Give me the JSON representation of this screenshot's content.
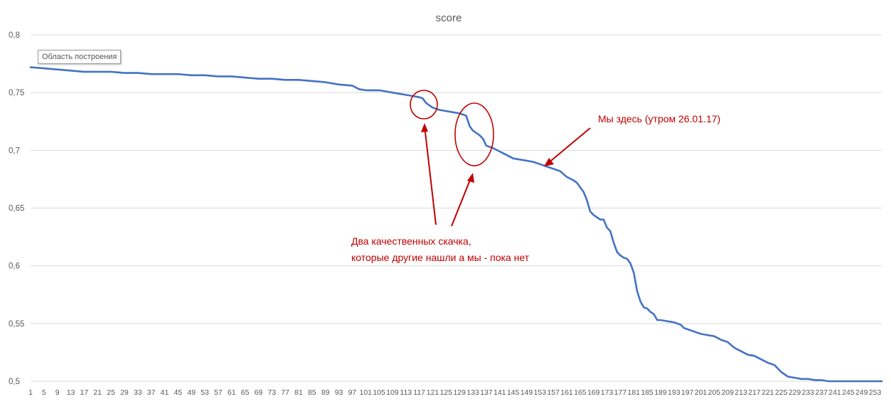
{
  "tooltip": "Область построения",
  "annotations": {
    "two_jumps_line1": "Два качественных скачка,",
    "two_jumps_line2": "которые другие нашли а мы - пока нет",
    "we_are_here": "Мы здесь (утром 26.01.17)"
  },
  "colors": {
    "line": "#4472c4",
    "annotation": "#c00000",
    "grid": "#d9d9d9",
    "text": "#595959"
  },
  "chart_data": {
    "type": "line",
    "title": "score",
    "xlabel": "",
    "ylabel": "",
    "xlim": [
      1,
      255
    ],
    "ylim": [
      0.5,
      0.8
    ],
    "yticks": [
      "0,5",
      "0,55",
      "0,6",
      "0,65",
      "0,7",
      "0,75",
      "0,8"
    ],
    "ytick_values": [
      0.5,
      0.55,
      0.6,
      0.65,
      0.7,
      0.75,
      0.8
    ],
    "xticks": [
      1,
      5,
      9,
      13,
      17,
      21,
      25,
      29,
      33,
      37,
      41,
      45,
      49,
      53,
      57,
      61,
      65,
      69,
      73,
      77,
      81,
      85,
      89,
      93,
      97,
      101,
      105,
      109,
      113,
      117,
      121,
      125,
      129,
      133,
      137,
      141,
      145,
      149,
      153,
      157,
      161,
      165,
      169,
      173,
      177,
      181,
      185,
      189,
      193,
      197,
      201,
      205,
      209,
      213,
      217,
      221,
      225,
      229,
      233,
      237,
      241,
      245,
      249,
      253
    ],
    "grid": "horizontal",
    "legend": "none",
    "series": [
      {
        "points": [
          [
            1,
            0.772
          ],
          [
            5,
            0.771
          ],
          [
            9,
            0.77
          ],
          [
            13,
            0.769
          ],
          [
            17,
            0.768
          ],
          [
            21,
            0.768
          ],
          [
            25,
            0.768
          ],
          [
            29,
            0.767
          ],
          [
            33,
            0.767
          ],
          [
            37,
            0.766
          ],
          [
            41,
            0.766
          ],
          [
            45,
            0.766
          ],
          [
            49,
            0.765
          ],
          [
            53,
            0.765
          ],
          [
            57,
            0.764
          ],
          [
            61,
            0.764
          ],
          [
            65,
            0.763
          ],
          [
            69,
            0.762
          ],
          [
            73,
            0.762
          ],
          [
            77,
            0.761
          ],
          [
            81,
            0.761
          ],
          [
            85,
            0.76
          ],
          [
            89,
            0.759
          ],
          [
            93,
            0.757
          ],
          [
            97,
            0.756
          ],
          [
            99,
            0.753
          ],
          [
            101,
            0.752
          ],
          [
            105,
            0.752
          ],
          [
            107,
            0.751
          ],
          [
            109,
            0.75
          ],
          [
            113,
            0.748
          ],
          [
            115,
            0.747
          ],
          [
            117,
            0.746
          ],
          [
            118,
            0.745
          ],
          [
            119,
            0.741
          ],
          [
            121,
            0.737
          ],
          [
            123,
            0.735
          ],
          [
            125,
            0.734
          ],
          [
            127,
            0.733
          ],
          [
            129,
            0.732
          ],
          [
            131,
            0.73
          ],
          [
            132,
            0.721
          ],
          [
            133,
            0.717
          ],
          [
            135,
            0.713
          ],
          [
            136,
            0.71
          ],
          [
            137,
            0.704
          ],
          [
            139,
            0.702
          ],
          [
            141,
            0.699
          ],
          [
            143,
            0.696
          ],
          [
            145,
            0.693
          ],
          [
            147,
            0.692
          ],
          [
            149,
            0.691
          ],
          [
            151,
            0.69
          ],
          [
            153,
            0.688
          ],
          [
            155,
            0.686
          ],
          [
            157,
            0.684
          ],
          [
            159,
            0.682
          ],
          [
            161,
            0.677
          ],
          [
            163,
            0.674
          ],
          [
            164,
            0.672
          ],
          [
            165,
            0.668
          ],
          [
            166,
            0.664
          ],
          [
            167,
            0.657
          ],
          [
            168,
            0.647
          ],
          [
            169,
            0.644
          ],
          [
            171,
            0.64
          ],
          [
            172,
            0.64
          ],
          [
            173,
            0.633
          ],
          [
            174,
            0.63
          ],
          [
            175,
            0.62
          ],
          [
            176,
            0.612
          ],
          [
            177,
            0.609
          ],
          [
            178,
            0.607
          ],
          [
            179,
            0.606
          ],
          [
            180,
            0.602
          ],
          [
            181,
            0.594
          ],
          [
            182,
            0.578
          ],
          [
            183,
            0.569
          ],
          [
            184,
            0.564
          ],
          [
            185,
            0.563
          ],
          [
            186,
            0.56
          ],
          [
            187,
            0.558
          ],
          [
            188,
            0.553
          ],
          [
            189,
            0.553
          ],
          [
            191,
            0.552
          ],
          [
            193,
            0.551
          ],
          [
            195,
            0.549
          ],
          [
            196,
            0.546
          ],
          [
            197,
            0.545
          ],
          [
            199,
            0.543
          ],
          [
            201,
            0.541
          ],
          [
            203,
            0.54
          ],
          [
            205,
            0.539
          ],
          [
            207,
            0.536
          ],
          [
            209,
            0.534
          ],
          [
            211,
            0.529
          ],
          [
            213,
            0.526
          ],
          [
            215,
            0.523
          ],
          [
            217,
            0.522
          ],
          [
            219,
            0.519
          ],
          [
            221,
            0.516
          ],
          [
            223,
            0.514
          ],
          [
            225,
            0.508
          ],
          [
            227,
            0.504
          ],
          [
            229,
            0.503
          ],
          [
            231,
            0.502
          ],
          [
            233,
            0.502
          ],
          [
            235,
            0.501
          ],
          [
            237,
            0.501
          ],
          [
            239,
            0.5
          ],
          [
            255,
            0.5
          ]
        ]
      }
    ]
  }
}
